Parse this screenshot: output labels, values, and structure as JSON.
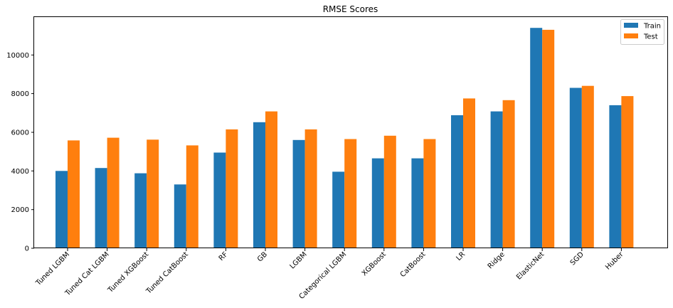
{
  "chart_data": {
    "type": "bar",
    "title": "RMSE Scores",
    "xlabel": "",
    "ylabel": "",
    "categories": [
      "Tuned LGBM",
      "Tuned Cat LGBM",
      "Tuned XGBoost",
      "Tuned CatBoost",
      "RF",
      "GB",
      "LGBM",
      "Categorical LGBM",
      "XGBoost",
      "CatBoost",
      "LR",
      "Ridge",
      "ElasticNet",
      "SGD",
      "Huber"
    ],
    "series": [
      {
        "name": "Train",
        "color": "#1f77b4",
        "values": [
          4000,
          4150,
          3880,
          3300,
          4950,
          6520,
          5600,
          3960,
          4650,
          4650,
          6880,
          7080,
          11400,
          8300,
          7400
        ]
      },
      {
        "name": "Test",
        "color": "#ff7f0e",
        "values": [
          5580,
          5720,
          5620,
          5320,
          6150,
          7080,
          6150,
          5650,
          5820,
          5650,
          7750,
          7660,
          11300,
          8400,
          7870
        ]
      }
    ],
    "ylim": [
      0,
      11960
    ],
    "yticks": [
      0,
      2000,
      4000,
      6000,
      8000,
      10000
    ],
    "legend_position": "top-right",
    "grid": false
  }
}
